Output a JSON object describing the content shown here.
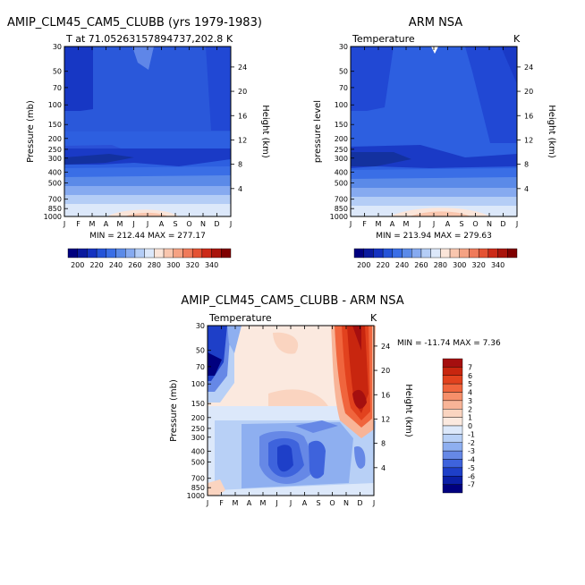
{
  "chart_data": [
    {
      "type": "heatmap",
      "title": "AMIP_CLM45_CAM5_CLUBB (yrs 1979-1983)",
      "subtitle_left": "T at 71.05263157894737,202.8",
      "subtitle_right": "K",
      "xlabel": "",
      "ylabel": "Pressure (mb)",
      "ylabel_right": "Height (km)",
      "x_ticks": [
        "J",
        "F",
        "M",
        "A",
        "M",
        "J",
        "J",
        "A",
        "S",
        "O",
        "N",
        "D",
        "J"
      ],
      "y_ticks": [
        30,
        50,
        70,
        100,
        150,
        200,
        250,
        300,
        400,
        500,
        700,
        850,
        1000
      ],
      "y_ticks_right": [
        24,
        20,
        16,
        12,
        8,
        4
      ],
      "stats": "MIN = 212.44  MAX = 277.17"
    },
    {
      "type": "heatmap",
      "title": "ARM NSA",
      "subtitle_left": "Temperature",
      "subtitle_right": "K",
      "xlabel": "",
      "ylabel": "pressure level",
      "ylabel_right": "Height (km)",
      "x_ticks": [
        "J",
        "F",
        "M",
        "A",
        "M",
        "J",
        "J",
        "A",
        "S",
        "O",
        "N",
        "D",
        "J"
      ],
      "y_ticks": [
        30,
        50,
        70,
        100,
        150,
        200,
        250,
        300,
        400,
        500,
        700,
        850,
        1000
      ],
      "y_ticks_right": [
        24,
        20,
        16,
        12,
        8,
        4
      ],
      "stats": "MIN = 213.94  MAX = 279.63"
    },
    {
      "type": "heatmap",
      "title": "AMIP_CLM45_CAM5_CLUBB - ARM NSA",
      "subtitle_left": "Temperature",
      "subtitle_right": "K",
      "xlabel": "",
      "ylabel": "Pressure (mb)",
      "ylabel_right": "Height (km)",
      "x_ticks": [
        "J",
        "F",
        "M",
        "A",
        "M",
        "J",
        "J",
        "A",
        "S",
        "O",
        "N",
        "D",
        "J"
      ],
      "y_ticks": [
        30,
        50,
        70,
        100,
        150,
        200,
        250,
        300,
        400,
        500,
        700,
        850,
        1000
      ],
      "y_ticks_right": [
        24,
        20,
        16,
        12,
        8,
        4
      ],
      "stats": "MIN = -11.74 MAX =    7.36"
    }
  ],
  "colorbar_abs": {
    "labels": [
      "200",
      "220",
      "240",
      "260",
      "280",
      "300",
      "320",
      "340"
    ],
    "colors": [
      "#00007f",
      "#0a1a9e",
      "#1432c0",
      "#2453d8",
      "#3a6ee6",
      "#5b8ae8",
      "#86aaf0",
      "#b4cdf6",
      "#dce8fa",
      "#fbe5d9",
      "#f9c6ae",
      "#f5a283",
      "#ef7a5a",
      "#e45233",
      "#cc2a18",
      "#a9140c",
      "#7f0000"
    ]
  },
  "colorbar_diff": {
    "labels": [
      "7",
      "6",
      "5",
      "4",
      "3",
      "2",
      "1",
      "0",
      "-1",
      "-2",
      "-3",
      "-4",
      "-5",
      "-6",
      "-7"
    ],
    "colors": [
      "#a50f0f",
      "#c8260f",
      "#e2421e",
      "#f0653d",
      "#f68f6a",
      "#f8b497",
      "#fad4c0",
      "#fbe9df",
      "#dce8fa",
      "#b8d0f6",
      "#8eaff0",
      "#6688e6",
      "#3e63dc",
      "#1e3fc8",
      "#0b1fa6",
      "#00007f"
    ]
  }
}
